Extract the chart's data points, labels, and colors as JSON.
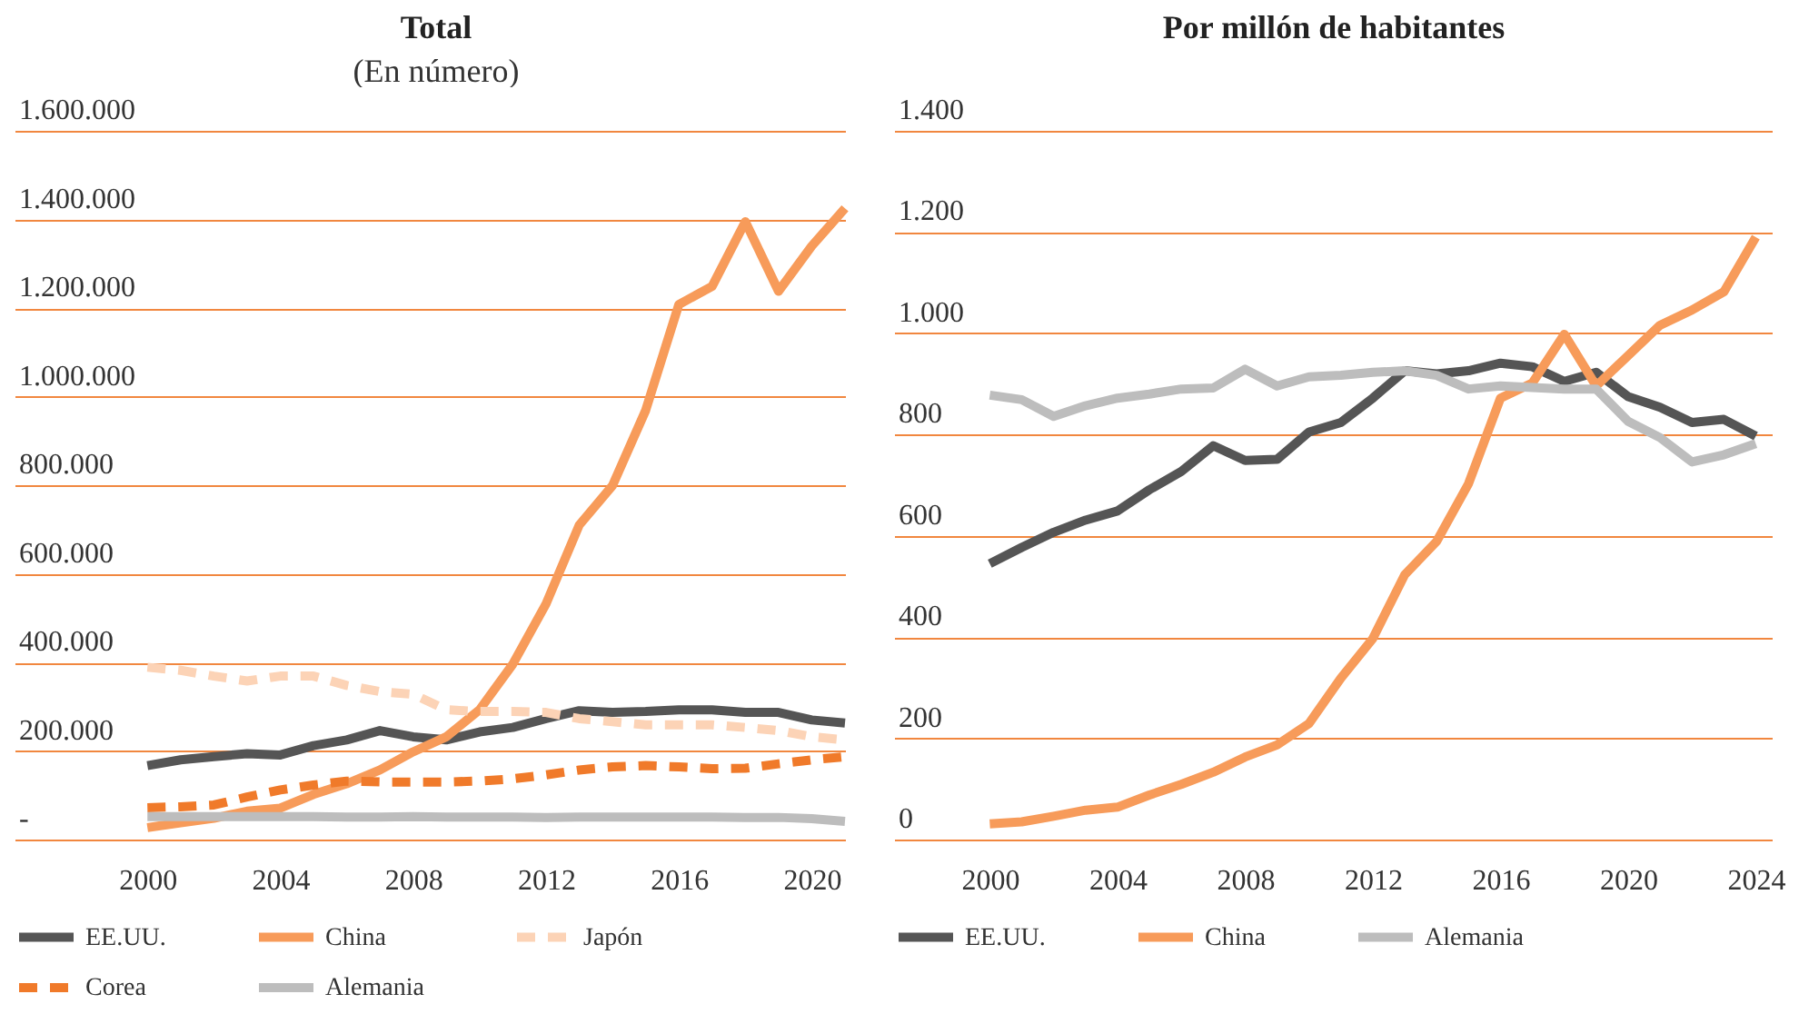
{
  "chart_data": [
    {
      "type": "line",
      "title": "Total",
      "subtitle": "(En número)",
      "x": [
        2000,
        2001,
        2002,
        2003,
        2004,
        2005,
        2006,
        2007,
        2008,
        2009,
        2010,
        2011,
        2012,
        2013,
        2014,
        2015,
        2016,
        2017,
        2018,
        2019,
        2020,
        2021
      ],
      "series": [
        {
          "name": "EE.UU.",
          "color": "#555555",
          "line_style": "solid",
          "values": [
            167000,
            180000,
            187000,
            194000,
            191000,
            212000,
            225000,
            246000,
            232000,
            225000,
            243000,
            253000,
            273000,
            291000,
            287000,
            289000,
            293000,
            293000,
            287000,
            287000,
            270000,
            263000
          ]
        },
        {
          "name": "China",
          "color": "#f79b5a",
          "line_style": "solid",
          "values": [
            27000,
            38000,
            48000,
            64000,
            71000,
            102000,
            126000,
            157000,
            198000,
            232000,
            293000,
            396000,
            532000,
            710000,
            799000,
            969000,
            1208000,
            1249000,
            1395000,
            1238000,
            1340000,
            1425000
          ]
        },
        {
          "name": "Japón",
          "color": "#fcd3b6",
          "line_style": "dashed",
          "values": [
            389000,
            382000,
            369000,
            358000,
            369000,
            369000,
            348000,
            334000,
            328000,
            293000,
            289000,
            289000,
            287000,
            273000,
            266000,
            259000,
            259000,
            259000,
            253000,
            246000,
            232000,
            225000
          ]
        },
        {
          "name": "Corea",
          "color": "#f07a2a",
          "line_style": "dashed",
          "values": [
            72000,
            74000,
            78000,
            96000,
            112000,
            123000,
            132000,
            130000,
            130000,
            130000,
            132000,
            137000,
            146000,
            157000,
            164000,
            167000,
            164000,
            160000,
            161000,
            171000,
            180000,
            187000
          ]
        },
        {
          "name": "Alemania",
          "color": "#bdbdbd",
          "line_style": "solid",
          "values": [
            52000,
            52000,
            52000,
            52000,
            52000,
            52000,
            51000,
            51000,
            52000,
            51000,
            51000,
            51000,
            50000,
            51000,
            51000,
            51000,
            51000,
            51000,
            50000,
            50000,
            47000,
            41000
          ]
        }
      ],
      "xlim": [
        1996,
        2021
      ],
      "xticks": [
        2000,
        2004,
        2008,
        2012,
        2016,
        2020
      ],
      "ylim": [
        0,
        1600000
      ],
      "yticks": [
        {
          "value": 0,
          "label": "-"
        },
        {
          "value": 200000,
          "label": "200.000"
        },
        {
          "value": 400000,
          "label": "400.000"
        },
        {
          "value": 600000,
          "label": "600.000"
        },
        {
          "value": 800000,
          "label": "800.000"
        },
        {
          "value": 1000000,
          "label": "1.000.000"
        },
        {
          "value": 1200000,
          "label": "1.200.000"
        },
        {
          "value": 1400000,
          "label": "1.400.000"
        },
        {
          "value": 1600000,
          "label": "1.600.000"
        }
      ],
      "grid": "y",
      "legend": "bottom"
    },
    {
      "type": "line",
      "title": "Por millón de habitantes",
      "x": [
        2000,
        2001,
        2002,
        2003,
        2004,
        2005,
        2006,
        2007,
        2008,
        2009,
        2010,
        2011,
        2012,
        2013,
        2014,
        2015,
        2016,
        2017,
        2018,
        2019,
        2020,
        2021,
        2022,
        2023,
        2024
      ],
      "series": [
        {
          "name": "EE.UU.",
          "color": "#555555",
          "line_style": "solid",
          "values": [
            545,
            577,
            607,
            631,
            649,
            691,
            727,
            778,
            749,
            751,
            805,
            824,
            872,
            926,
            920,
            926,
            941,
            934,
            905,
            923,
            875,
            854,
            824,
            830,
            797
          ]
        },
        {
          "name": "China",
          "color": "#f79b5a",
          "line_style": "solid",
          "values": [
            31,
            35,
            46,
            58,
            64,
            88,
            109,
            133,
            163,
            187,
            229,
            319,
            397,
            523,
            589,
            703,
            872,
            902,
            998,
            896,
            956,
            1016,
            1046,
            1082,
            1190
          ]
        },
        {
          "name": "Alemania",
          "color": "#bdbdbd",
          "line_style": "solid",
          "values": [
            878,
            869,
            836,
            857,
            872,
            880,
            890,
            892,
            929,
            896,
            914,
            917,
            923,
            926,
            917,
            890,
            896,
            893,
            890,
            890,
            826,
            794,
            746,
            760,
            782
          ]
        }
      ],
      "xlim": [
        1997,
        2024.5
      ],
      "xticks": [
        2000,
        2004,
        2008,
        2012,
        2016,
        2020,
        2024
      ],
      "ylim": [
        0,
        1400
      ],
      "yticks": [
        0,
        200,
        400,
        600,
        800,
        {
          "value": 1000,
          "label": "1.000"
        },
        {
          "value": 1200,
          "label": "1.200"
        },
        {
          "value": 1400,
          "label": "1.400"
        }
      ],
      "grid": "y",
      "legend": "bottom"
    }
  ]
}
